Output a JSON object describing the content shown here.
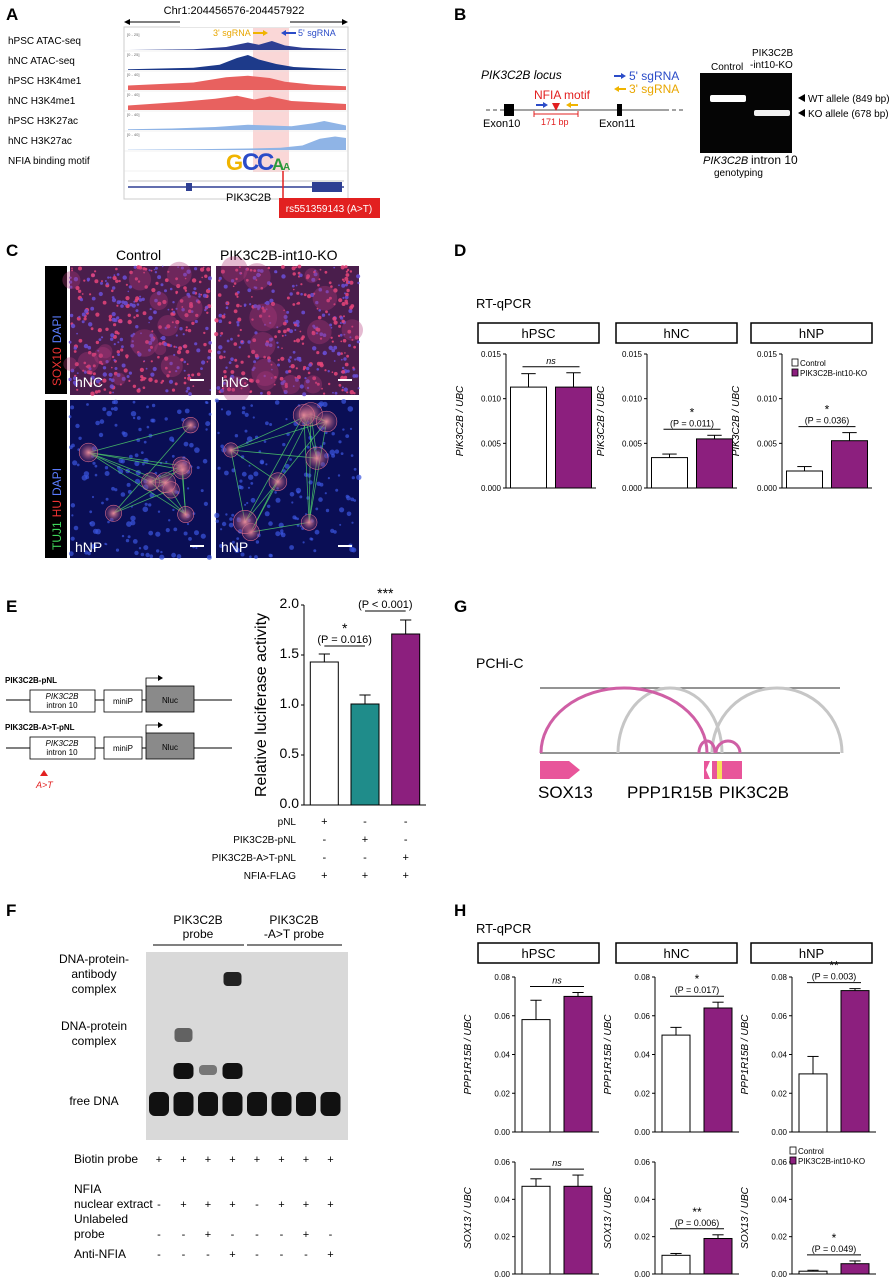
{
  "panels": {
    "A": "A",
    "B": "B",
    "C": "C",
    "D": "D",
    "E": "E",
    "F": "F",
    "G": "G",
    "H": "H"
  },
  "A": {
    "locus": "Chr1:204456576-204457922",
    "tracks": [
      {
        "label": "hPSC ATAC-seq",
        "scale": "[0 - 25]",
        "color": "#2e3f93"
      },
      {
        "label": "hNC ATAC-seq",
        "scale": "[0 - 25]",
        "color": "#1d3a8a"
      },
      {
        "label": "hPSC H3K4me1",
        "scale": "[0 - 40]",
        "color": "#e8615f"
      },
      {
        "label": "hNC H3K4me1",
        "scale": "[0 - 40]",
        "color": "#e8615f"
      },
      {
        "label": "hPSC H3K27ac",
        "scale": "[0 - 40]",
        "color": "#8fb4e6"
      },
      {
        "label": "hNC H3K27ac",
        "scale": "[0 - 40]",
        "color": "#8fb4e6"
      },
      {
        "label": "NFIA binding motif",
        "scale": "",
        "color": ""
      }
    ],
    "sg3": "3' sgRNA",
    "sg5": "5' sgRNA",
    "motif_text": "GCCAA",
    "gene": "PIK3C2B",
    "snp": "rs551359143 (A>T)"
  },
  "B": {
    "locus_title": "PIK3C2B locus",
    "legend5": "5' sgRNA",
    "legend3": "3' sgRNA",
    "motif": "NFIA motif",
    "size": "171 bp",
    "exon10": "Exon10",
    "exon11": "Exon11",
    "lane_control": "Control",
    "lane_ko_1": "PIK3C2B",
    "lane_ko_2": "-int10-KO",
    "wt": "WT allele (849 bp)",
    "ko": "KO allele (678 bp)",
    "caption_1": "PIK3C2B",
    "caption_1b": " intron 10",
    "caption_2": "genotyping"
  },
  "C": {
    "col_control": "Control",
    "col_ko": "PIK3C2B-int10-KO",
    "row1_label_a": "SOX10",
    "row1_label_b": "DAPI",
    "row2_label_a": "TUJ1",
    "row2_label_b": "HU",
    "row2_label_c": "DAPI",
    "hnc": "hNC",
    "hnp": "hNP"
  },
  "D": {
    "title": "RT-qPCR",
    "ylabel": "PIK3C2B / UBC",
    "legend_control": "Control",
    "legend_ko": "PIK3C2B-int10-KO",
    "sig": [
      {
        "star": "ns",
        "p": ""
      },
      {
        "star": "*",
        "p": "(P = 0.011)"
      },
      {
        "star": "*",
        "p": "(P = 0.036)"
      }
    ]
  },
  "E": {
    "construct1": "PIK3C2B-pNL",
    "construct2": "PIK3C2B-A>T-pNL",
    "box_gene": "PIK3C2B",
    "box_intron": "intron 10",
    "minip": "miniP",
    "nluc": "Nluc",
    "mut": "A>T",
    "ylabel": "Relative luciferase activity",
    "sig1_star": "*",
    "sig1_p": "(P = 0.016)",
    "sig2_star": "***",
    "sig2_p": "(P < 0.001)",
    "rows": [
      {
        "label": "pNL",
        "marks": [
          "+",
          "-",
          "-"
        ]
      },
      {
        "label": "PIK3C2B-pNL",
        "marks": [
          "-",
          "+",
          "-"
        ]
      },
      {
        "label": "PIK3C2B-A>T-pNL",
        "marks": [
          "-",
          "-",
          "+"
        ]
      },
      {
        "label": "NFIA-FLAG",
        "marks": [
          "+",
          "+",
          "+"
        ]
      }
    ]
  },
  "F": {
    "probe1_a": "PIK3C2B",
    "probe1_b": "probe",
    "probe2_a": "PIK3C2B",
    "probe2_b": "-A>T probe",
    "band1_a": "DNA-protein-",
    "band1_b": "antibody",
    "band1_c": "complex",
    "band2_a": "DNA-protein",
    "band2_b": "complex",
    "band3": "free DNA",
    "rows": [
      {
        "label_a": "Biotin probe",
        "label_b": "",
        "marks": [
          "+",
          "+",
          "+",
          "+",
          "+",
          "+",
          "+",
          "+"
        ]
      },
      {
        "label_a": "NFIA",
        "label_b": "nuclear extract",
        "marks": [
          "-",
          "+",
          "+",
          "+",
          "-",
          "+",
          "+",
          "+"
        ]
      },
      {
        "label_a": "Unlabeled",
        "label_b": "probe",
        "marks": [
          "-",
          "-",
          "+",
          "-",
          "-",
          "-",
          "+",
          "-"
        ]
      },
      {
        "label_a": "Anti-NFIA",
        "label_b": "",
        "marks": [
          "-",
          "-",
          "-",
          "+",
          "-",
          "-",
          "-",
          "+"
        ]
      }
    ]
  },
  "G": {
    "title": "PCHi-C",
    "gene1": "SOX13",
    "gene2": "PPP1R15B",
    "gene3": "PIK3C2B"
  },
  "H": {
    "title": "RT-qPCR",
    "ylabel_top": "PPP1R15B / UBC",
    "ylabel_bottom": "SOX13 / UBC",
    "legend_control": "Control",
    "legend_ko": "PIK3C2B-int10-KO",
    "sig_top": [
      {
        "star": "ns",
        "p": ""
      },
      {
        "star": "*",
        "p": "(P = 0.017)"
      },
      {
        "star": "**",
        "p": "(P = 0.003)"
      }
    ],
    "sig_bottom": [
      {
        "star": "ns",
        "p": ""
      },
      {
        "star": "**",
        "p": "(P = 0.006)"
      },
      {
        "star": "*",
        "p": "(P = 0.049)"
      }
    ]
  },
  "chart_data": [
    {
      "type": "bar",
      "title": "hPSC",
      "ylabel": "PIK3C2B / UBC",
      "ylim": [
        0,
        0.015
      ],
      "yticks": [
        "0.000",
        "0.005",
        "0.010",
        "0.015"
      ],
      "categories": [
        "Control",
        "PIK3C2B-int10-KO"
      ],
      "values": [
        0.0113,
        0.0113
      ],
      "errors": [
        0.0015,
        0.0016
      ]
    },
    {
      "type": "bar",
      "title": "hNC",
      "ylabel": "PIK3C2B / UBC",
      "ylim": [
        0,
        0.015
      ],
      "yticks": [
        "0.000",
        "0.005",
        "0.010",
        "0.015"
      ],
      "categories": [
        "Control",
        "PIK3C2B-int10-KO"
      ],
      "values": [
        0.0034,
        0.0055
      ],
      "errors": [
        0.0004,
        0.0004
      ]
    },
    {
      "type": "bar",
      "title": "hNP",
      "ylabel": "PIK3C2B / UBC",
      "ylim": [
        0,
        0.015
      ],
      "yticks": [
        "0.000",
        "0.005",
        "0.010",
        "0.015"
      ],
      "categories": [
        "Control",
        "PIK3C2B-int10-KO"
      ],
      "values": [
        0.0019,
        0.0053
      ],
      "errors": [
        0.0005,
        0.0009
      ]
    },
    {
      "type": "bar",
      "ylabel": "Relative luciferase activity",
      "ylim": [
        0,
        2.0
      ],
      "yticks": [
        "0.0",
        "0.5",
        "1.0",
        "1.5",
        "2.0"
      ],
      "categories": [
        "pNL",
        "PIK3C2B-pNL",
        "PIK3C2B-A>T-pNL"
      ],
      "values": [
        1.43,
        1.01,
        1.71
      ],
      "errors": [
        0.08,
        0.09,
        0.14
      ]
    },
    {
      "type": "bar",
      "title": "hPSC",
      "ylabel": "PPP1R15B / UBC",
      "ylim": [
        0,
        0.08
      ],
      "yticks": [
        "0.00",
        "0.02",
        "0.04",
        "0.06",
        "0.08"
      ],
      "categories": [
        "Control",
        "PIK3C2B-int10-KO"
      ],
      "values": [
        0.058,
        0.07
      ],
      "errors": [
        0.01,
        0.002
      ]
    },
    {
      "type": "bar",
      "title": "hNC",
      "ylabel": "PPP1R15B / UBC",
      "ylim": [
        0,
        0.08
      ],
      "yticks": [
        "0.00",
        "0.02",
        "0.04",
        "0.06",
        "0.08"
      ],
      "categories": [
        "Control",
        "PIK3C2B-int10-KO"
      ],
      "values": [
        0.05,
        0.064
      ],
      "errors": [
        0.004,
        0.003
      ]
    },
    {
      "type": "bar",
      "title": "hNP",
      "ylabel": "PPP1R15B / UBC",
      "ylim": [
        0,
        0.08
      ],
      "yticks": [
        "0.00",
        "0.02",
        "0.04",
        "0.06",
        "0.08"
      ],
      "categories": [
        "Control",
        "PIK3C2B-int10-KO"
      ],
      "values": [
        0.03,
        0.073
      ],
      "errors": [
        0.009,
        0.001
      ]
    },
    {
      "type": "bar",
      "title": "hPSC",
      "ylabel": "SOX13 / UBC",
      "ylim": [
        0,
        0.06
      ],
      "yticks": [
        "0.00",
        "0.02",
        "0.04",
        "0.06"
      ],
      "categories": [
        "Control",
        "PIK3C2B-int10-KO"
      ],
      "values": [
        0.047,
        0.047
      ],
      "errors": [
        0.004,
        0.006
      ]
    },
    {
      "type": "bar",
      "title": "hNC",
      "ylabel": "SOX13 / UBC",
      "ylim": [
        0,
        0.06
      ],
      "yticks": [
        "0.00",
        "0.02",
        "0.04",
        "0.06"
      ],
      "categories": [
        "Control",
        "PIK3C2B-int10-KO"
      ],
      "values": [
        0.01,
        0.019
      ],
      "errors": [
        0.001,
        0.002
      ]
    },
    {
      "type": "bar",
      "title": "hNP",
      "ylabel": "SOX13 / UBC",
      "ylim": [
        0,
        0.06
      ],
      "yticks": [
        "0.00",
        "0.02",
        "0.04",
        "0.06"
      ],
      "categories": [
        "Control",
        "PIK3C2B-int10-KO"
      ],
      "values": [
        0.0015,
        0.0055
      ],
      "errors": [
        0.0005,
        0.0015
      ]
    }
  ],
  "colors": {
    "control": "#ffffff",
    "ko": "#8c1f7e",
    "teal": "#1f8c8a",
    "pink": "#e8559a",
    "gray": "#c6c6c6",
    "red": "#e22020"
  }
}
